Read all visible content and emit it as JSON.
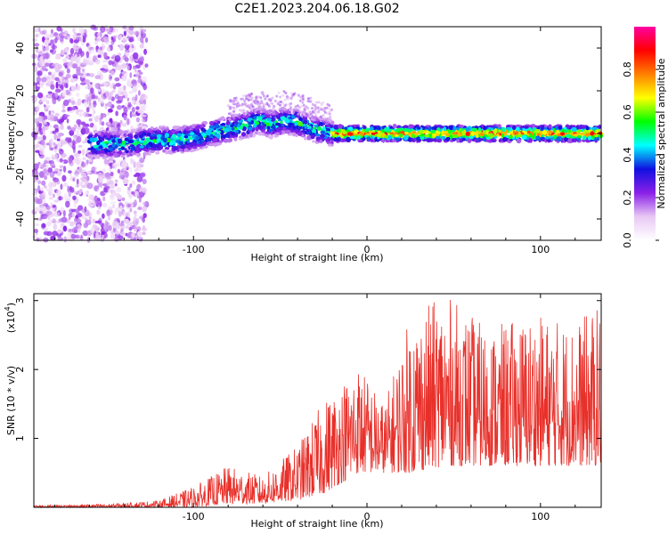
{
  "title": "C2E1.2023.204.06.18.G02",
  "chart_data": [
    {
      "type": "heatmap",
      "xlabel": "Height of straight line (km)",
      "ylabel": "Frequency (Hz)",
      "xlim": [
        -192,
        135
      ],
      "ylim": [
        -50,
        50
      ],
      "xticks": [
        "-100",
        "0",
        "100"
      ],
      "xtick_values": [
        -100,
        0,
        100
      ],
      "yticks": [
        "40",
        "20",
        "0",
        "-20",
        "-40"
      ],
      "ytick_values": [
        40,
        20,
        0,
        -20,
        -40
      ],
      "colorbar": {
        "label": "Normalized spectral amplitude",
        "ticks": [
          "0.0",
          "0.2",
          "0.4",
          "0.6",
          "0.8"
        ],
        "tick_values": [
          0,
          0.2,
          0.4,
          0.6,
          0.8
        ],
        "range": [
          0,
          1
        ],
        "colormap": [
          "#ffffff",
          "#e8c8f4",
          "#8a20e8",
          "#1010e0",
          "#00ffff",
          "#00ff00",
          "#ffff00",
          "#ff8000",
          "#ff0000",
          "#ff00a0"
        ]
      },
      "ridge": [
        {
          "x": -150,
          "freq": -5
        },
        {
          "x": -140,
          "freq": -5
        },
        {
          "x": -130,
          "freq": -4
        },
        {
          "x": -120,
          "freq": -3
        },
        {
          "x": -110,
          "freq": -3
        },
        {
          "x": -100,
          "freq": -2
        },
        {
          "x": -90,
          "freq": 0
        },
        {
          "x": -80,
          "freq": 2
        },
        {
          "x": -70,
          "freq": 4
        },
        {
          "x": -62,
          "freq": 6
        },
        {
          "x": -55,
          "freq": 4
        },
        {
          "x": -48,
          "freq": 6
        },
        {
          "x": -40,
          "freq": 5
        },
        {
          "x": -30,
          "freq": 2
        },
        {
          "x": -20,
          "freq": 0
        },
        {
          "x": 0,
          "freq": 0
        },
        {
          "x": 50,
          "freq": 0
        },
        {
          "x": 100,
          "freq": 0
        },
        {
          "x": 130,
          "freq": 0
        }
      ],
      "grid": false
    },
    {
      "type": "line",
      "xlabel": "Height of straight line (km)",
      "ylabel": "SNR (10 * v/v)",
      "y_exponent_label": "(x10",
      "y_exponent": "4",
      "xlim": [
        -192,
        135
      ],
      "ylim": [
        0,
        3.1
      ],
      "xticks": [
        "-100",
        "0",
        "100"
      ],
      "xtick_values": [
        -100,
        0,
        100
      ],
      "yticks": [
        "1",
        "2",
        "3"
      ],
      "ytick_values": [
        1,
        2,
        3
      ],
      "color": "#e8302a",
      "envelope": [
        {
          "x": -192,
          "low": 0.0,
          "high": 0.03
        },
        {
          "x": -150,
          "low": 0.0,
          "high": 0.05
        },
        {
          "x": -120,
          "low": 0.0,
          "high": 0.1
        },
        {
          "x": -100,
          "low": 0.0,
          "high": 0.3
        },
        {
          "x": -80,
          "low": 0.05,
          "high": 0.6
        },
        {
          "x": -60,
          "low": 0.05,
          "high": 0.45
        },
        {
          "x": -40,
          "low": 0.1,
          "high": 0.9
        },
        {
          "x": -25,
          "low": 0.2,
          "high": 1.55
        },
        {
          "x": -5,
          "low": 0.5,
          "high": 2.1
        },
        {
          "x": 10,
          "low": 0.5,
          "high": 1.5
        },
        {
          "x": 25,
          "low": 0.5,
          "high": 2.8
        },
        {
          "x": 45,
          "low": 0.6,
          "high": 3.1
        },
        {
          "x": 70,
          "low": 0.6,
          "high": 2.6
        },
        {
          "x": 95,
          "low": 0.6,
          "high": 2.8
        },
        {
          "x": 120,
          "low": 0.6,
          "high": 2.7
        },
        {
          "x": 135,
          "low": 0.6,
          "high": 2.95
        }
      ],
      "grid": false
    }
  ]
}
